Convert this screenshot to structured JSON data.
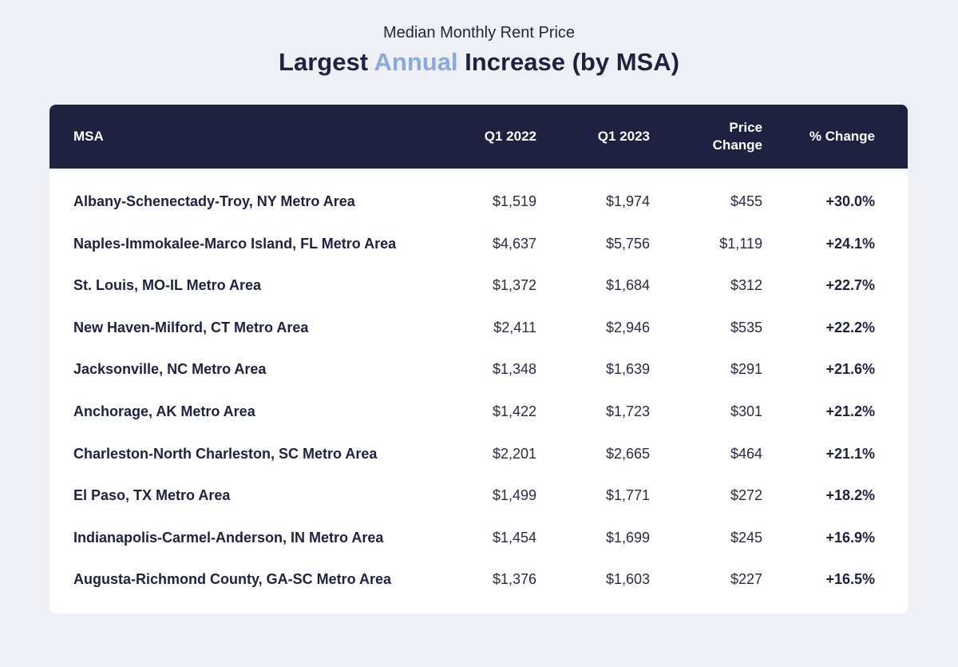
{
  "header": {
    "subtitle": "Median Monthly Rent Price",
    "title_part1": "Largest ",
    "title_accent": "Annual",
    "title_part2": " Increase (by MSA)"
  },
  "colors": {
    "background": "#eff0f5",
    "header_bg": "#1f2140",
    "accent": "#8aa9de"
  },
  "chart_data": {
    "type": "table",
    "columns": [
      "MSA",
      "Q1 2022",
      "Q1 2023",
      "Price Change",
      "% Change"
    ],
    "column_lines": {
      "price_change": [
        "Price",
        "Change"
      ]
    },
    "rows": [
      {
        "msa": "Albany-Schenectady-Troy, NY Metro Area",
        "q1_2022": "$1,519",
        "q1_2023": "$1,974",
        "price_change": "$455",
        "pct_change": "+30.0%"
      },
      {
        "msa": "Naples-Immokalee-Marco Island, FL Metro Area",
        "q1_2022": "$4,637",
        "q1_2023": "$5,756",
        "price_change": "$1,119",
        "pct_change": "+24.1%"
      },
      {
        "msa": "St. Louis, MO-IL Metro Area",
        "q1_2022": "$1,372",
        "q1_2023": "$1,684",
        "price_change": "$312",
        "pct_change": "+22.7%"
      },
      {
        "msa": "New Haven-Milford, CT Metro Area",
        "q1_2022": "$2,411",
        "q1_2023": "$2,946",
        "price_change": "$535",
        "pct_change": "+22.2%"
      },
      {
        "msa": "Jacksonville, NC Metro Area",
        "q1_2022": "$1,348",
        "q1_2023": "$1,639",
        "price_change": "$291",
        "pct_change": "+21.6%"
      },
      {
        "msa": "Anchorage, AK Metro Area",
        "q1_2022": "$1,422",
        "q1_2023": "$1,723",
        "price_change": "$301",
        "pct_change": "+21.2%"
      },
      {
        "msa": "Charleston-North Charleston, SC Metro Area",
        "q1_2022": "$2,201",
        "q1_2023": "$2,665",
        "price_change": "$464",
        "pct_change": "+21.1%"
      },
      {
        "msa": "El Paso, TX Metro Area",
        "q1_2022": "$1,499",
        "q1_2023": "$1,771",
        "price_change": "$272",
        "pct_change": "+18.2%"
      },
      {
        "msa": "Indianapolis-Carmel-Anderson, IN Metro Area",
        "q1_2022": "$1,454",
        "q1_2023": "$1,699",
        "price_change": "$245",
        "pct_change": "+16.9%"
      },
      {
        "msa": "Augusta-Richmond County, GA-SC Metro Area",
        "q1_2022": "$1,376",
        "q1_2023": "$1,603",
        "price_change": "$227",
        "pct_change": "+16.5%"
      }
    ]
  }
}
